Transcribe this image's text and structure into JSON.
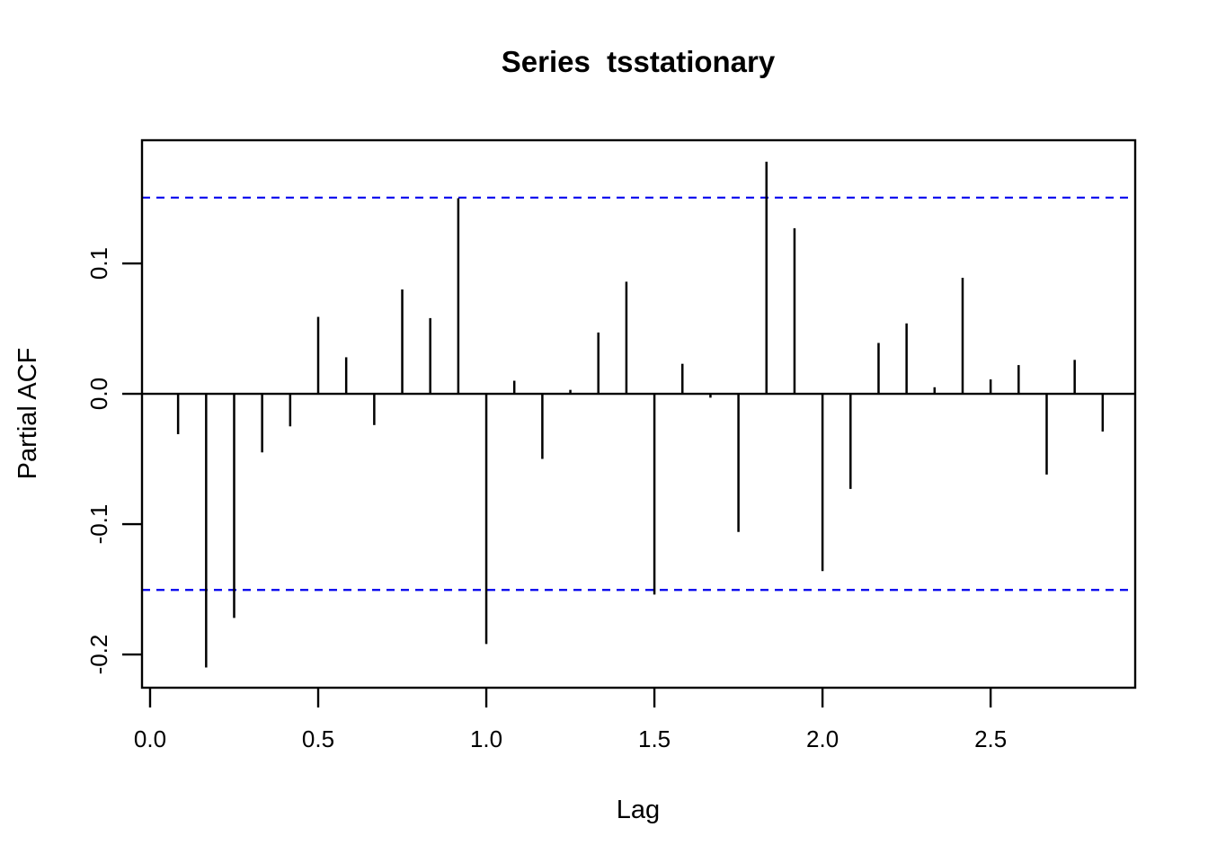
{
  "chart_data": {
    "type": "bar",
    "subtype": "stem-pacf",
    "title": "Series  tsstationary",
    "series_name": "tsstationary",
    "xlabel": "Lag",
    "ylabel": "Partial ACF",
    "xlim": [
      -0.024,
      2.93
    ],
    "ylim": [
      -0.2255,
      0.1945
    ],
    "x_ticks": [
      0.0,
      0.5,
      1.0,
      1.5,
      2.0,
      2.5
    ],
    "x_tick_labels": [
      "0.0",
      "0.5",
      "1.0",
      "1.5",
      "2.0",
      "2.5"
    ],
    "y_ticks": [
      0.1,
      0.0,
      -0.1,
      -0.2
    ],
    "y_tick_labels": [
      "0.1",
      "0.0",
      "-0.1",
      "-0.2"
    ],
    "grid": "off",
    "legend": "none",
    "confidence_upper": 0.1505,
    "confidence_lower": -0.1505,
    "confidence_style": "dashed",
    "lag_step": 0.08333,
    "x": [
      0.0833,
      0.1667,
      0.25,
      0.3333,
      0.4167,
      0.5,
      0.5833,
      0.6667,
      0.75,
      0.8333,
      0.9167,
      1.0,
      1.0833,
      1.1667,
      1.25,
      1.3333,
      1.4167,
      1.5,
      1.5833,
      1.6667,
      1.75,
      1.8333,
      1.9167,
      2.0,
      2.0833,
      2.1667,
      2.25,
      2.3333,
      2.4167,
      2.5,
      2.5833,
      2.6667,
      2.75,
      2.8333
    ],
    "values": [
      -0.031,
      -0.21,
      -0.172,
      -0.045,
      -0.025,
      0.059,
      0.028,
      -0.024,
      0.08,
      0.058,
      0.15,
      -0.192,
      0.01,
      -0.05,
      0.003,
      0.047,
      0.086,
      -0.154,
      0.023,
      -0.003,
      -0.106,
      0.178,
      0.127,
      -0.136,
      -0.073,
      0.039,
      0.054,
      0.005,
      0.089,
      0.011,
      0.022,
      -0.062,
      0.026,
      -0.029
    ],
    "colors": {
      "bars": "#000000",
      "confidence": "#0000EE",
      "axis": "#000000",
      "background": "#FFFFFF"
    }
  }
}
